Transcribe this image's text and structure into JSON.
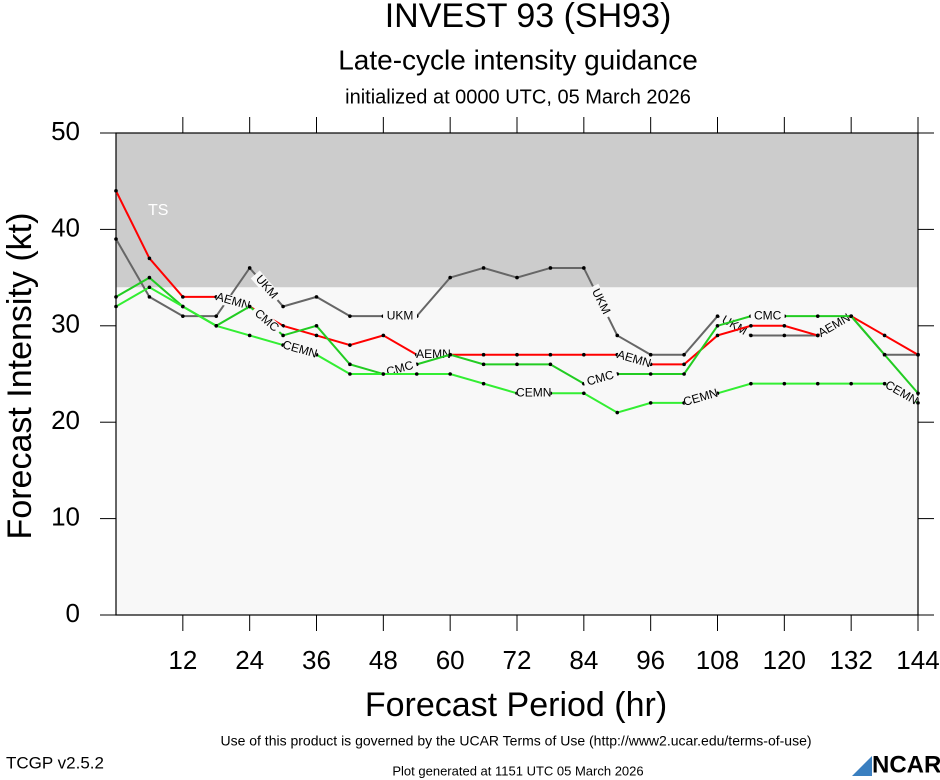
{
  "chart_data": {
    "type": "line",
    "title": "INVEST 93 (SH93)",
    "subtitle": "Late-cycle intensity guidance",
    "init_text": "initialized at 0000 UTC, 05 March 2026",
    "x_label": "Forecast Period (hr)",
    "y_label": "Forecast Intensity (kt)",
    "x": [
      0,
      6,
      12,
      18,
      24,
      30,
      36,
      42,
      48,
      54,
      60,
      66,
      72,
      78,
      84,
      90,
      96,
      102,
      108,
      114,
      120,
      126,
      132,
      138,
      144
    ],
    "xlim": [
      0,
      144
    ],
    "xticks": [
      12,
      24,
      36,
      48,
      60,
      72,
      84,
      96,
      108,
      120,
      132,
      144
    ],
    "ylim": [
      0,
      50
    ],
    "yticks": [
      0,
      10,
      20,
      30,
      40,
      50
    ],
    "bands": [
      {
        "label": "TS",
        "from": 34,
        "to": 50,
        "color": "#cccccc"
      }
    ],
    "series": [
      {
        "name": "UKM",
        "color": "#666666",
        "values": [
          39,
          33,
          31,
          31,
          36,
          32,
          33,
          31,
          31,
          31,
          35,
          36,
          35,
          36,
          36,
          29,
          27,
          27,
          31,
          29,
          29,
          29,
          31,
          27,
          27
        ]
      },
      {
        "name": "AEMN",
        "color": "#ff0000",
        "values": [
          44,
          37,
          33,
          33,
          32,
          30,
          29,
          28,
          29,
          27,
          27,
          27,
          27,
          27,
          27,
          27,
          26,
          26,
          29,
          30,
          30,
          29,
          31,
          29,
          27
        ]
      },
      {
        "name": "CMC",
        "color": "#22cc22",
        "values": [
          33,
          35,
          32,
          30,
          32,
          29,
          30,
          26,
          25,
          26,
          27,
          26,
          26,
          26,
          24,
          25,
          25,
          25,
          30,
          31,
          31,
          31,
          31,
          27,
          23
        ]
      },
      {
        "name": "CEMN",
        "color": "#33ee33",
        "values": [
          32,
          34,
          32,
          30,
          29,
          28,
          27,
          25,
          25,
          25,
          25,
          24,
          23,
          23,
          23,
          21,
          22,
          22,
          23,
          24,
          24,
          24,
          24,
          24,
          22
        ]
      }
    ]
  },
  "footer": {
    "terms": "Use of this product is governed by the UCAR Terms of Use (http://www2.ucar.edu/terms-of-use)",
    "generated": "Plot generated at 1151 UTC   05 March 2026",
    "version": "TCGP v2.5.2",
    "logo": "NCAR"
  }
}
